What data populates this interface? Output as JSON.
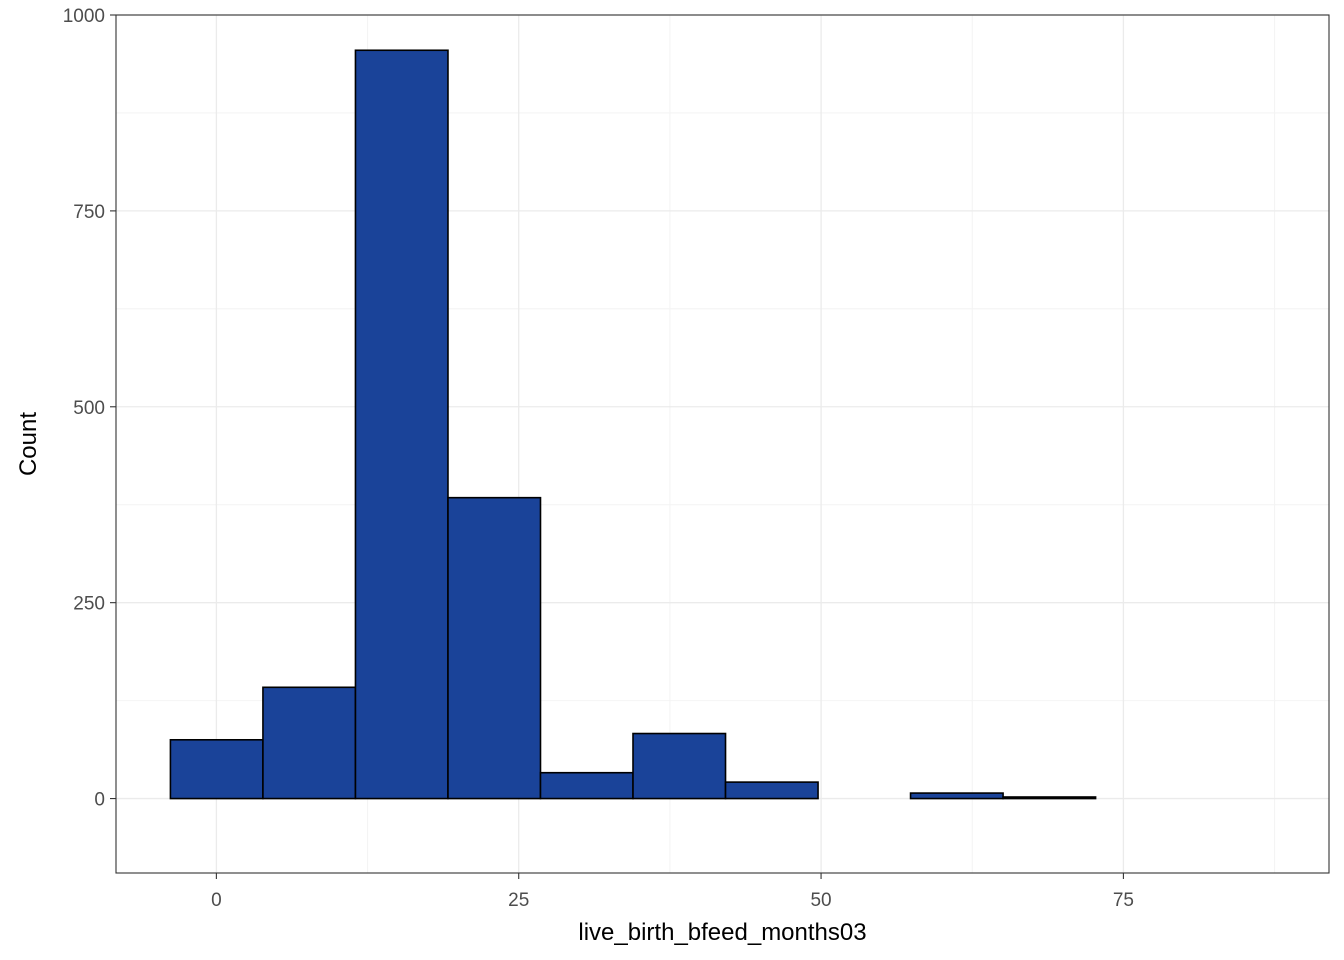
{
  "chart_data": {
    "type": "bar",
    "title": "",
    "xlabel": "live_birth_bfeed_months03",
    "ylabel": "Count",
    "xlim": [
      -8.3,
      92
    ],
    "ylim": [
      -95,
      1000
    ],
    "x_ticks": [
      0,
      25,
      50,
      75
    ],
    "x_tick_labels": [
      "0",
      "25",
      "50",
      "75"
    ],
    "y_ticks": [
      0,
      250,
      500,
      750,
      1000
    ],
    "y_tick_labels": [
      "0",
      "250",
      "500",
      "750",
      "1000"
    ],
    "grid": true,
    "legend": "none",
    "bins": [
      {
        "x0": -3.8,
        "x1": 3.85,
        "count": 75
      },
      {
        "x0": 3.85,
        "x1": 11.5,
        "count": 142
      },
      {
        "x0": 11.5,
        "x1": 19.15,
        "count": 955
      },
      {
        "x0": 19.15,
        "x1": 26.8,
        "count": 384
      },
      {
        "x0": 26.8,
        "x1": 34.45,
        "count": 33
      },
      {
        "x0": 34.45,
        "x1": 42.1,
        "count": 83
      },
      {
        "x0": 42.1,
        "x1": 49.75,
        "count": 21
      },
      {
        "x0": 49.75,
        "x1": 57.4,
        "count": 0
      },
      {
        "x0": 57.4,
        "x1": 65.05,
        "count": 7
      },
      {
        "x0": 65.05,
        "x1": 72.7,
        "count": 2
      },
      {
        "x0": 72.7,
        "x1": 80.35,
        "count": 0
      },
      {
        "x0": 80.35,
        "x1": 88.0,
        "count": 0
      }
    ],
    "colors": {
      "fill": "#1a4399",
      "stroke": "#000000",
      "panel_background": "#ffffff",
      "panel_border": "#333333",
      "grid_major": "#ebebeb",
      "grid_minor": "#f4f4f4",
      "tick_text": "#4d4d4d"
    }
  }
}
